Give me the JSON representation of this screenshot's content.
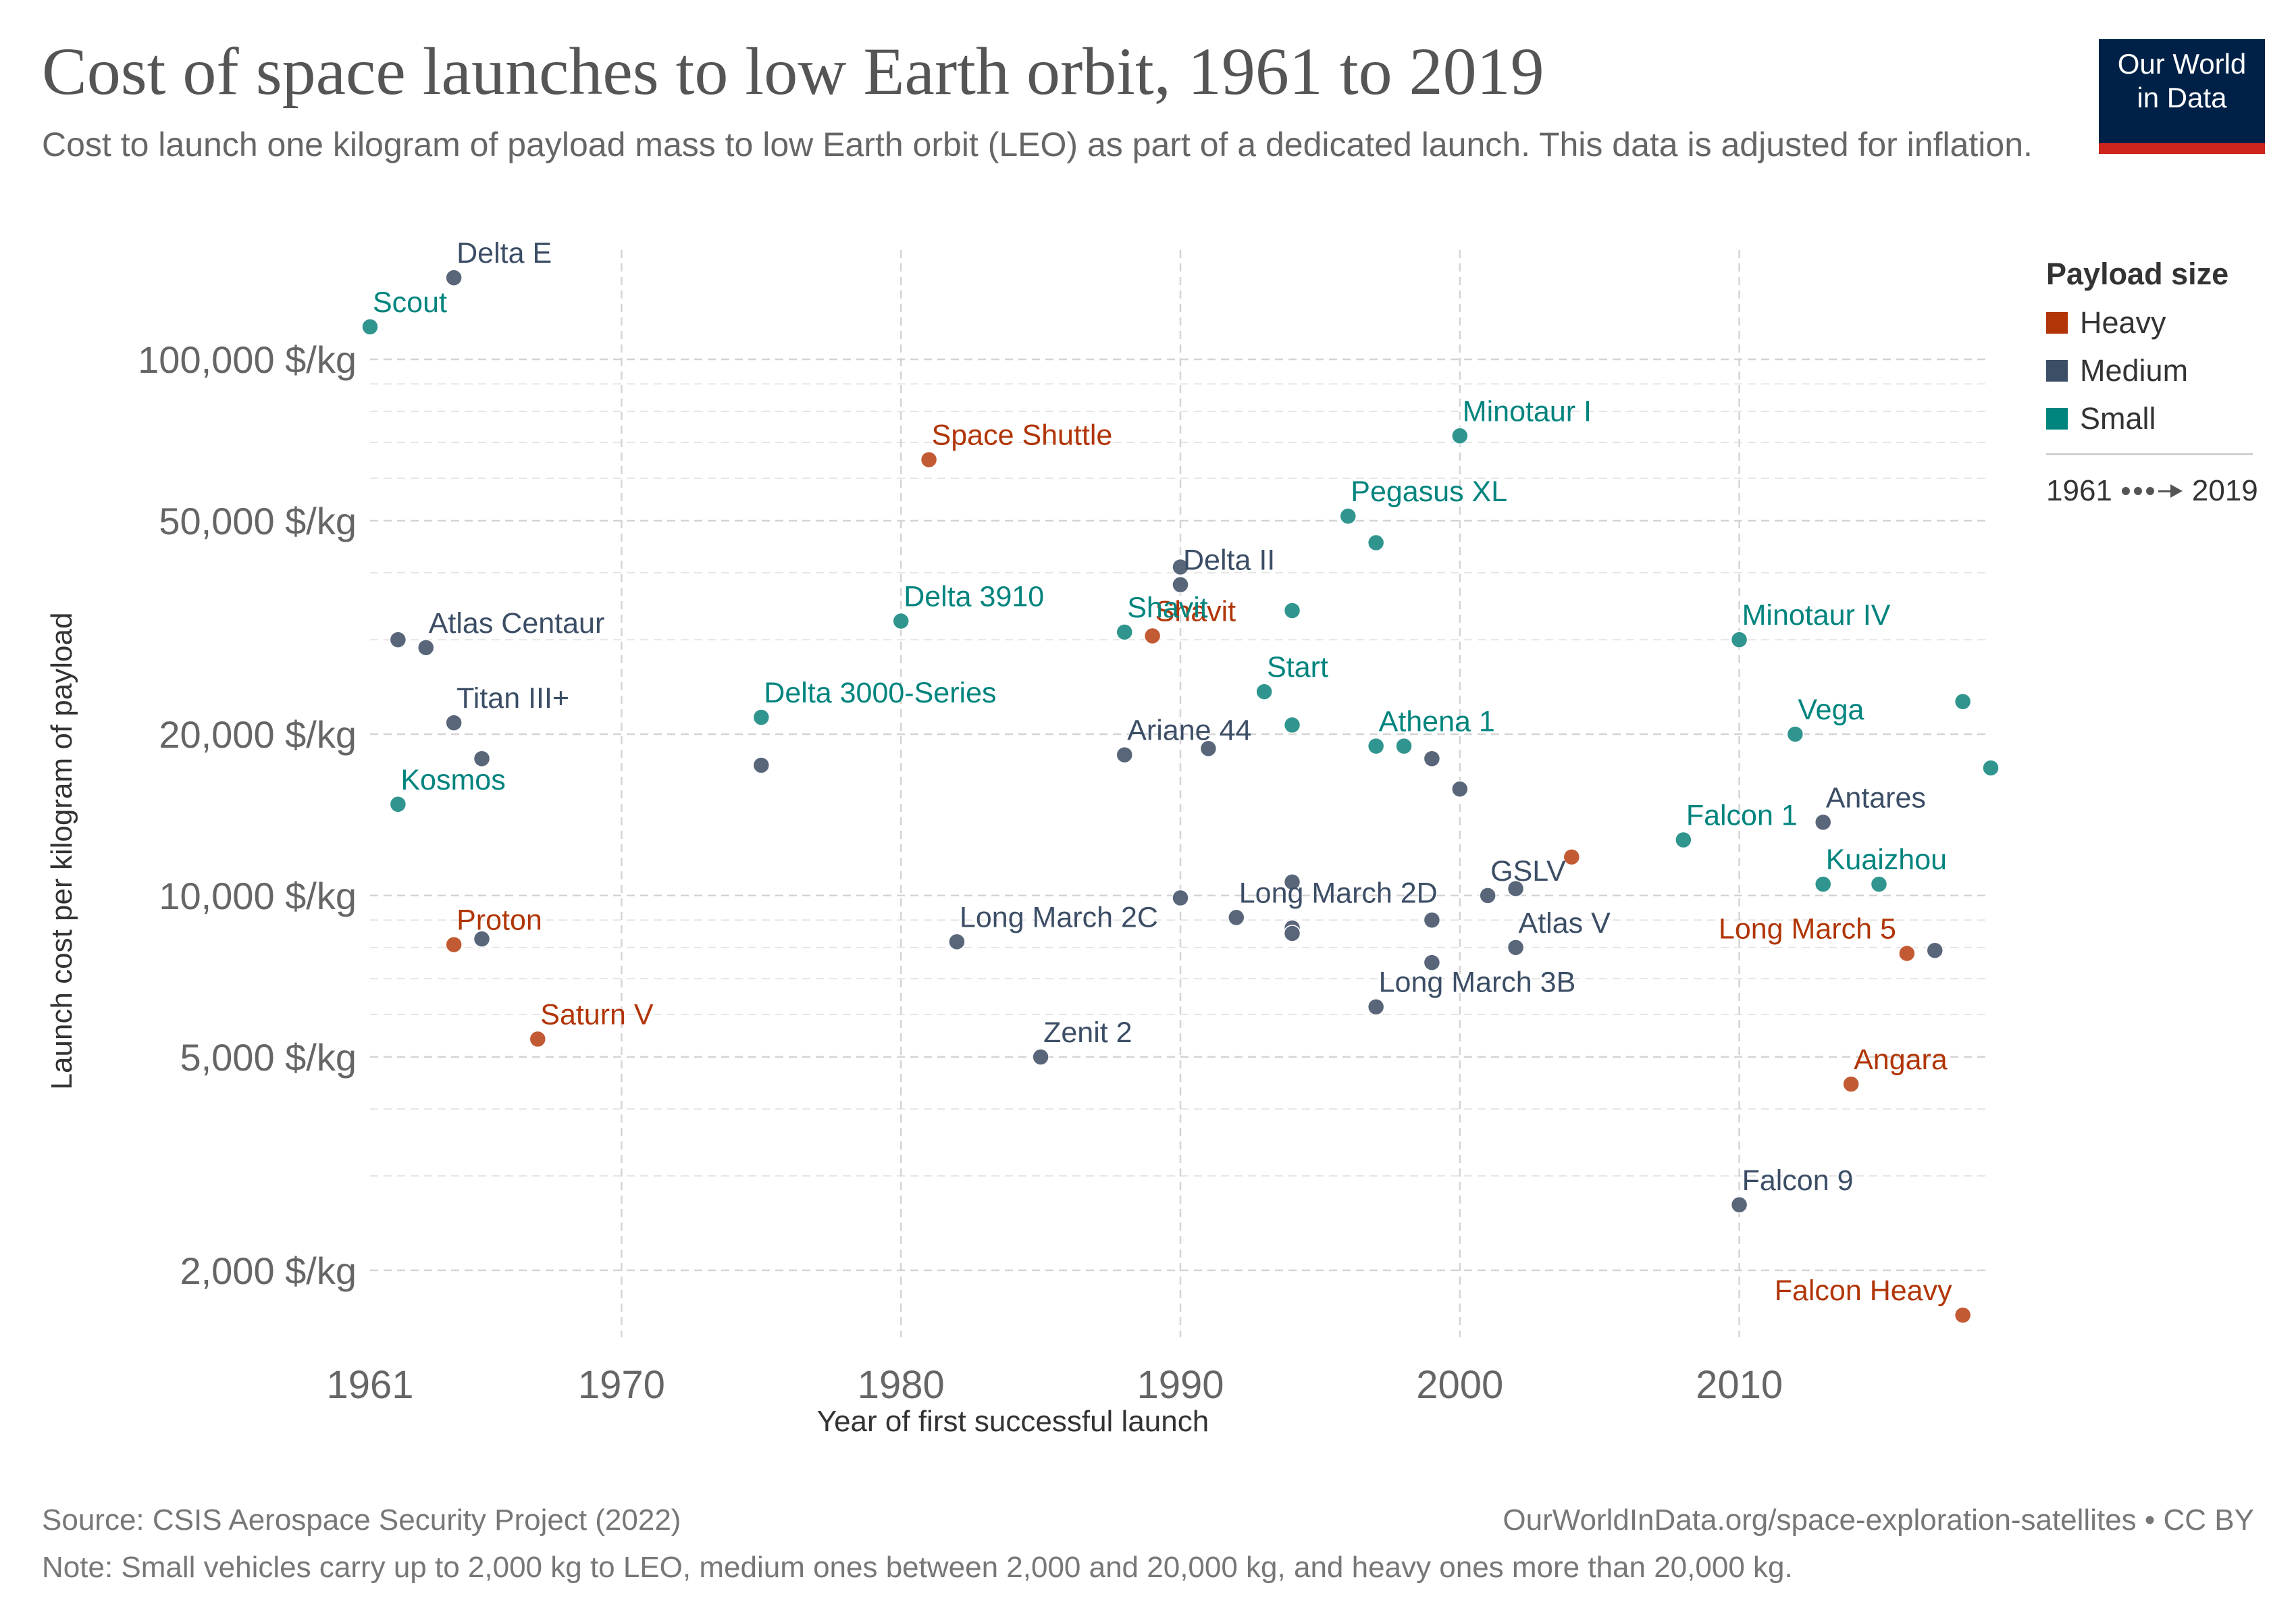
{
  "title": "Cost of space launches to low Earth orbit, 1961 to 2019",
  "subtitle": "Cost to launch one kilogram of payload mass to low Earth orbit (LEO) as part of a dedicated launch. This data is adjusted for inflation.",
  "logo": {
    "line1": "Our World",
    "line2": "in Data"
  },
  "legend": {
    "title": "Payload size",
    "items": [
      {
        "label": "Heavy",
        "color": "#b13507"
      },
      {
        "label": "Medium",
        "color": "#3c4e66"
      },
      {
        "label": "Small",
        "color": "#00847e"
      }
    ],
    "time_start": "1961",
    "time_end": "2019"
  },
  "footer": {
    "source": "Source: CSIS Aerospace Security Project (2022)",
    "url": "OurWorldInData.org/space-exploration-satellites • CC BY",
    "note": "Note: Small vehicles carry up to 2,000 kg to LEO, medium ones between 2,000 and 20,000 kg, and heavy ones more than 20,000 kg."
  },
  "chart_data": {
    "type": "scatter",
    "xlabel": "Year of first successful launch",
    "ylabel": "Launch cost per kilogram of payload",
    "xlim": [
      1961,
      2019
    ],
    "ylim": [
      1500,
      160000
    ],
    "y_scale": "log",
    "grid": true,
    "legend_position": "right",
    "x_ticks": [
      {
        "value": 1961,
        "label": "1961"
      },
      {
        "value": 1970,
        "label": "1970"
      },
      {
        "value": 1980,
        "label": "1980"
      },
      {
        "value": 1990,
        "label": "1990"
      },
      {
        "value": 2000,
        "label": "2000"
      },
      {
        "value": 2010,
        "label": "2010"
      }
    ],
    "y_ticks": [
      {
        "value": 2000,
        "label": "2,000 $/kg"
      },
      {
        "value": 5000,
        "label": "5,000 $/kg"
      },
      {
        "value": 10000,
        "label": "10,000 $/kg"
      },
      {
        "value": 20000,
        "label": "20,000 $/kg"
      },
      {
        "value": 50000,
        "label": "50,000 $/kg"
      },
      {
        "value": 100000,
        "label": "100,000 $/kg"
      }
    ],
    "series": [
      {
        "name": "Heavy",
        "color": "#b13507",
        "points": [
          {
            "x": 1981,
            "y": 65000,
            "label": "Space Shuttle"
          },
          {
            "x": 1989,
            "y": 30500,
            "label": "Shavit"
          },
          {
            "x": 1964,
            "y": 8100,
            "label": "Proton"
          },
          {
            "x": 1967,
            "y": 5400,
            "label": "Saturn V"
          },
          {
            "x": 2016,
            "y": 7800,
            "label": "Long March 5"
          },
          {
            "x": 2014,
            "y": 4450,
            "label": "Angara"
          },
          {
            "x": 2018,
            "y": 1650,
            "label": "Falcon Heavy"
          },
          {
            "x": 2004,
            "y": 11800,
            "label": ""
          }
        ]
      },
      {
        "name": "Medium",
        "color": "#3c4e66",
        "points": [
          {
            "x": 1964,
            "y": 142000,
            "label": "Delta E"
          },
          {
            "x": 1963,
            "y": 29000,
            "label": "Atlas Centaur"
          },
          {
            "x": 1962,
            "y": 30000,
            "label": ""
          },
          {
            "x": 1964,
            "y": 21000,
            "label": "Titan III+"
          },
          {
            "x": 1965,
            "y": 18000,
            "label": ""
          },
          {
            "x": 1965,
            "y": 8300,
            "label": ""
          },
          {
            "x": 1975,
            "y": 17500,
            "label": ""
          },
          {
            "x": 1982,
            "y": 8200,
            "label": "Long March 2C"
          },
          {
            "x": 1985,
            "y": 5000,
            "label": "Zenit 2"
          },
          {
            "x": 1988,
            "y": 18300,
            "label": "Ariane 44"
          },
          {
            "x": 1990,
            "y": 38000,
            "label": "Delta II"
          },
          {
            "x": 1990,
            "y": 41000,
            "label": ""
          },
          {
            "x": 1991,
            "y": 18800,
            "label": ""
          },
          {
            "x": 1990,
            "y": 9900,
            "label": ""
          },
          {
            "x": 1992,
            "y": 9100,
            "label": "Long March 2D"
          },
          {
            "x": 1994,
            "y": 10600,
            "label": ""
          },
          {
            "x": 1994,
            "y": 8700,
            "label": ""
          },
          {
            "x": 1994,
            "y": 8500,
            "label": ""
          },
          {
            "x": 1997,
            "y": 6200,
            "label": "Long March 3B"
          },
          {
            "x": 1999,
            "y": 18000,
            "label": ""
          },
          {
            "x": 1999,
            "y": 9000,
            "label": ""
          },
          {
            "x": 1999,
            "y": 7500,
            "label": ""
          },
          {
            "x": 2000,
            "y": 15800,
            "label": ""
          },
          {
            "x": 2001,
            "y": 10000,
            "label": "GSLV"
          },
          {
            "x": 2002,
            "y": 8000,
            "label": "Atlas V"
          },
          {
            "x": 2002,
            "y": 10300,
            "label": ""
          },
          {
            "x": 2010,
            "y": 2650,
            "label": "Falcon 9"
          },
          {
            "x": 2013,
            "y": 13700,
            "label": "Antares"
          },
          {
            "x": 2017,
            "y": 7900,
            "label": ""
          }
        ]
      },
      {
        "name": "Small",
        "color": "#00847e",
        "points": [
          {
            "x": 1961,
            "y": 115000,
            "label": "Scout"
          },
          {
            "x": 1962,
            "y": 14800,
            "label": "Kosmos"
          },
          {
            "x": 1975,
            "y": 21500,
            "label": "Delta 3000-Series"
          },
          {
            "x": 1980,
            "y": 32500,
            "label": "Delta 3910"
          },
          {
            "x": 1988,
            "y": 31000,
            "label": "Shavit"
          },
          {
            "x": 1993,
            "y": 24000,
            "label": "Start"
          },
          {
            "x": 1994,
            "y": 34000,
            "label": ""
          },
          {
            "x": 1994,
            "y": 20800,
            "label": ""
          },
          {
            "x": 1996,
            "y": 51000,
            "label": "Pegasus XL"
          },
          {
            "x": 1997,
            "y": 45500,
            "label": ""
          },
          {
            "x": 1997,
            "y": 19000,
            "label": "Athena 1"
          },
          {
            "x": 1998,
            "y": 19000,
            "label": ""
          },
          {
            "x": 2000,
            "y": 72000,
            "label": "Minotaur I"
          },
          {
            "x": 2008,
            "y": 12700,
            "label": "Falcon 1"
          },
          {
            "x": 2010,
            "y": 30000,
            "label": "Minotaur IV"
          },
          {
            "x": 2012,
            "y": 20000,
            "label": "Vega"
          },
          {
            "x": 2013,
            "y": 10500,
            "label": "Kuaizhou"
          },
          {
            "x": 2015,
            "y": 10500,
            "label": ""
          },
          {
            "x": 2018,
            "y": 23000,
            "label": ""
          },
          {
            "x": 2019,
            "y": 17300,
            "label": ""
          }
        ]
      }
    ]
  }
}
